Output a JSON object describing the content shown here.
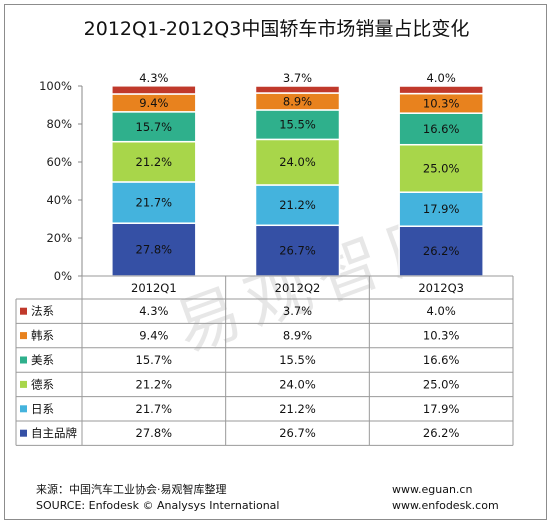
{
  "title": "2012Q1-2012Q3中国轿车市场销量占比变化",
  "watermark": "易观智库",
  "footer": {
    "source_cn": "来源：中国汽车工业协会·易观智库整理",
    "source_en": "SOURCE: Enfodesk © Analysys International",
    "url1": "www.eguan.cn",
    "url2": "www.enfodesk.com"
  },
  "chart_data": {
    "type": "bar",
    "stacked": true,
    "percent": true,
    "categories": [
      "2012Q1",
      "2012Q2",
      "2012Q3"
    ],
    "y_ticks": [
      "0%",
      "20%",
      "40%",
      "60%",
      "80%",
      "100%"
    ],
    "ylim": [
      0,
      100
    ],
    "series": [
      {
        "name": "自主品牌",
        "values": [
          27.8,
          26.7,
          26.2
        ],
        "labels": [
          "27.8%",
          "26.7%",
          "26.2%"
        ],
        "color": "#3550a5"
      },
      {
        "name": "日系",
        "values": [
          21.7,
          21.2,
          17.9
        ],
        "labels": [
          "21.7%",
          "21.2%",
          "17.9%"
        ],
        "color": "#44b3dd"
      },
      {
        "name": "德系",
        "values": [
          21.2,
          24.0,
          25.0
        ],
        "labels": [
          "21.2%",
          "24.0%",
          "25.0%"
        ],
        "color": "#a8d64a"
      },
      {
        "name": "美系",
        "values": [
          15.7,
          15.5,
          16.6
        ],
        "labels": [
          "15.7%",
          "15.5%",
          "16.6%"
        ],
        "color": "#2fb08c"
      },
      {
        "name": "韩系",
        "values": [
          9.4,
          8.9,
          10.3
        ],
        "labels": [
          "9.4%",
          "8.9%",
          "10.3%"
        ],
        "color": "#e8821e"
      },
      {
        "name": "法系",
        "values": [
          4.3,
          3.7,
          4.0
        ],
        "labels": [
          "4.3%",
          "3.7%",
          "4.0%"
        ],
        "color": "#c0392b"
      }
    ]
  }
}
